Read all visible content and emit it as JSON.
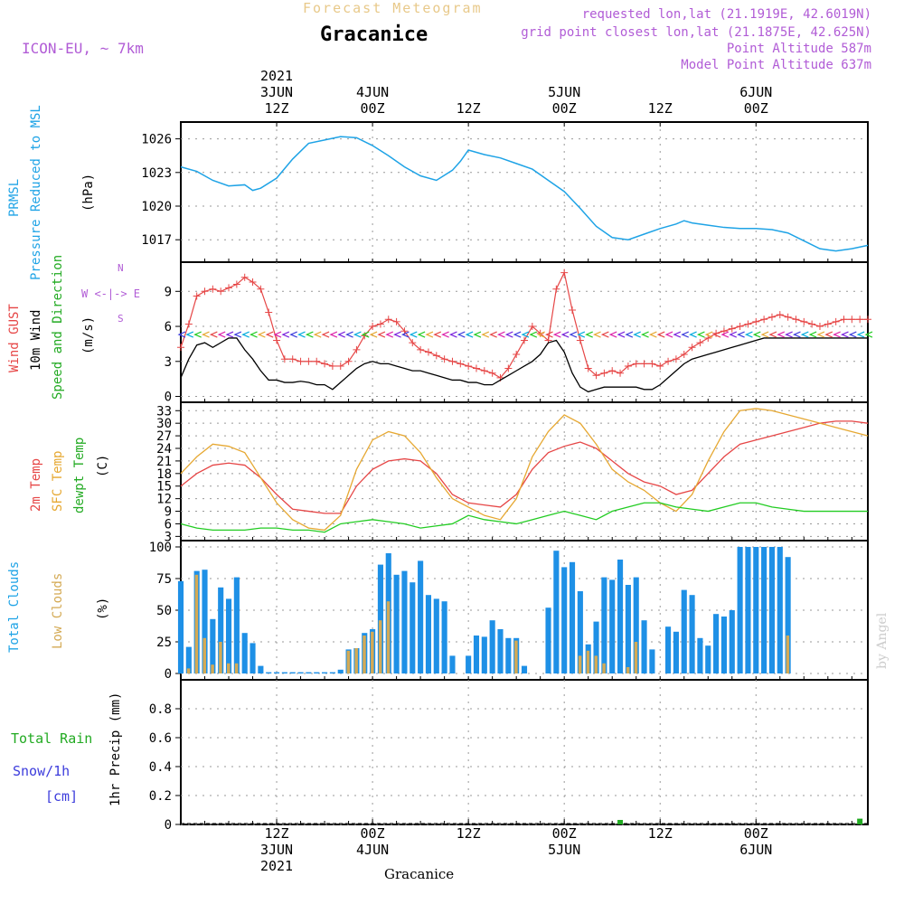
{
  "header": {
    "title_top": "Forecast Meteogram",
    "location": "Gracanice",
    "model": "ICON-EU, ~ 7km",
    "requested": "requested lon,lat (21.1919E, 42.6019N)",
    "gridpoint": "grid point closest lon,lat (21.1875E, 42.625N)",
    "point_altitude": "Point Altitude 587m",
    "model_altitude": "Model Point Altitude 637m"
  },
  "time_axis": {
    "top_labels": [
      {
        "l1": "2021",
        "l2": "3JUN",
        "l3": "12Z",
        "t": 12
      },
      {
        "l1": "",
        "l2": "4JUN",
        "l3": "00Z",
        "t": 24
      },
      {
        "l1": "",
        "l2": "",
        "l3": "12Z",
        "t": 36
      },
      {
        "l1": "",
        "l2": "5JUN",
        "l3": "00Z",
        "t": 48
      },
      {
        "l1": "",
        "l2": "",
        "l3": "12Z",
        "t": 60
      },
      {
        "l1": "",
        "l2": "6JUN",
        "l3": "00Z",
        "t": 72
      }
    ],
    "bottom_labels": [
      {
        "l1": "12Z",
        "l2": "3JUN",
        "l3": "2021",
        "t": 12
      },
      {
        "l1": "00Z",
        "l2": "4JUN",
        "l3": "",
        "t": 24
      },
      {
        "l1": "12Z",
        "l2": "",
        "l3": "",
        "t": 36
      },
      {
        "l1": "00Z",
        "l2": "5JUN",
        "l3": "",
        "t": 48
      },
      {
        "l1": "12Z",
        "l2": "",
        "l3": "",
        "t": 60
      },
      {
        "l1": "00Z",
        "l2": "6JUN",
        "l3": "",
        "t": 72
      }
    ],
    "bottom_name": "Gracanice"
  },
  "panel_labels": {
    "pressure": {
      "a": "PRMSL",
      "b": "Pressure Reduced to MSL",
      "unit": "(hPa)"
    },
    "wind": {
      "a": "Wind GUST",
      "b": "10m Wind",
      "c": "Speed and Direction",
      "unit": "(m/s)",
      "compass_n": "N",
      "compass_s": "S",
      "compass_we": "W <-|-> E"
    },
    "temp": {
      "a": "2m Temp",
      "b": "SFC Temp",
      "c": "dewpt Temp",
      "unit": "(C)"
    },
    "clouds": {
      "a": "Total Clouds",
      "b": "Low Clouds",
      "unit": "(%)"
    },
    "precip": {
      "a": "Total  Rain",
      "b": "Snow/1h",
      "c": "[cm]",
      "unit": "1hr Precip (mm)"
    }
  },
  "watermark": "by Angel",
  "colors": {
    "pressure": "#1ea3e6",
    "gust": "#e64646",
    "wind": "#000000",
    "t2m": "#e64646",
    "sfc": "#e6a832",
    "dewpt": "#22cc22",
    "total_cloud": "#1e90e6",
    "low_cloud": "#d4aa55",
    "rain": "#22aa22",
    "snow": "#3c3cdc",
    "meta": "#b15cd6"
  },
  "chart_data": [
    {
      "type": "line",
      "name": "pressure",
      "ylim": [
        1015,
        1027.5
      ],
      "yticks": [
        1017,
        1020,
        1023,
        1026
      ],
      "x": [
        0,
        2,
        4,
        6,
        8,
        9,
        10,
        12,
        14,
        16,
        18,
        20,
        22,
        24,
        26,
        28,
        30,
        32,
        34,
        35,
        36,
        38,
        40,
        42,
        44,
        46,
        48,
        50,
        52,
        54,
        56,
        58,
        60,
        62,
        63,
        64,
        66,
        68,
        70,
        72,
        74,
        76,
        78,
        80,
        82,
        84,
        86
      ],
      "series": [
        {
          "name": "PRMSL",
          "values": [
            1023.5,
            1023.1,
            1022.3,
            1021.8,
            1021.9,
            1021.4,
            1021.6,
            1022.5,
            1024.2,
            1025.6,
            1025.9,
            1026.2,
            1026.1,
            1025.4,
            1024.5,
            1023.5,
            1022.7,
            1022.3,
            1023.2,
            1024.0,
            1025.0,
            1024.6,
            1024.3,
            1023.8,
            1023.3,
            1022.3,
            1021.3,
            1019.8,
            1018.2,
            1017.2,
            1017.0,
            1017.5,
            1018.0,
            1018.4,
            1018.7,
            1018.5,
            1018.3,
            1018.1,
            1018.0,
            1018.0,
            1017.9,
            1017.6,
            1016.9,
            1016.2,
            1016.0,
            1016.2,
            1016.5
          ]
        }
      ]
    },
    {
      "type": "line",
      "name": "wind",
      "ylim": [
        -0.5,
        11.5
      ],
      "yticks": [
        0,
        3,
        6,
        9
      ],
      "x": [
        0,
        1,
        2,
        3,
        4,
        5,
        6,
        7,
        8,
        9,
        10,
        11,
        12,
        13,
        14,
        15,
        16,
        17,
        18,
        19,
        20,
        21,
        22,
        23,
        24,
        25,
        26,
        27,
        28,
        29,
        30,
        31,
        32,
        33,
        34,
        35,
        36,
        37,
        38,
        39,
        40,
        41,
        42,
        43,
        44,
        45,
        46,
        47,
        48,
        49,
        50,
        51,
        52,
        53,
        54,
        55,
        56,
        57,
        58,
        59,
        60,
        61,
        62,
        63,
        64,
        65,
        66,
        67,
        68,
        69,
        70,
        71,
        72,
        73,
        74,
        75,
        76,
        77,
        78,
        79,
        80,
        81,
        82,
        83,
        84,
        85,
        86
      ],
      "series": [
        {
          "name": "Wind GUST",
          "values": [
            4.2,
            6.2,
            8.6,
            9.0,
            9.2,
            9.0,
            9.3,
            9.6,
            10.2,
            9.8,
            9.2,
            7.2,
            4.8,
            3.2,
            3.2,
            3.0,
            3.0,
            3.0,
            2.8,
            2.6,
            2.6,
            3.0,
            4.0,
            5.2,
            6.0,
            6.2,
            6.6,
            6.4,
            5.6,
            4.6,
            4.0,
            3.8,
            3.5,
            3.2,
            3.0,
            2.8,
            2.6,
            2.4,
            2.2,
            2.0,
            1.6,
            2.4,
            3.6,
            4.8,
            6.0,
            5.4,
            4.8,
            9.2,
            10.6,
            7.4,
            4.8,
            2.4,
            1.8,
            2.0,
            2.2,
            2.0,
            2.6,
            2.8,
            2.8,
            2.8,
            2.6,
            3.0,
            3.2,
            3.6,
            4.2,
            4.6,
            5.0,
            5.4,
            5.6,
            5.8,
            6.0,
            6.2,
            6.4,
            6.6,
            6.8,
            7.0,
            6.8,
            6.6,
            6.4,
            6.2,
            6.0,
            6.2,
            6.4,
            6.6,
            6.6,
            6.6,
            6.6
          ]
        },
        {
          "name": "10m Wind",
          "values": [
            1.6,
            3.2,
            4.4,
            4.6,
            4.2,
            4.6,
            5.0,
            5.0,
            4.0,
            3.2,
            2.2,
            1.4,
            1.4,
            1.2,
            1.2,
            1.3,
            1.2,
            1.0,
            1.0,
            0.6,
            1.2,
            1.8,
            2.4,
            2.8,
            3.0,
            2.8,
            2.8,
            2.6,
            2.4,
            2.2,
            2.2,
            2.0,
            1.8,
            1.6,
            1.4,
            1.4,
            1.2,
            1.2,
            1.0,
            1.0,
            1.4,
            1.8,
            2.2,
            2.6,
            3.0,
            3.6,
            4.6,
            4.8,
            3.8,
            2.0,
            0.8,
            0.4,
            0.6,
            0.8,
            0.8,
            0.8,
            0.8,
            0.8,
            0.6,
            0.6,
            1.0,
            1.6,
            2.2,
            2.8,
            3.2,
            3.4,
            3.6,
            3.8,
            4.0,
            4.2,
            4.4,
            4.6,
            4.8,
            5.0,
            5.0,
            5.0,
            5.0,
            5.0,
            5.0,
            5.0,
            5.0,
            5.0,
            5.0,
            5.0,
            5.0,
            5.0,
            5.0
          ]
        }
      ]
    },
    {
      "type": "line",
      "name": "temperature",
      "ylim": [
        2,
        35
      ],
      "yticks": [
        3,
        6,
        9,
        12,
        15,
        18,
        21,
        24,
        27,
        30,
        33
      ],
      "x": [
        0,
        2,
        4,
        6,
        8,
        10,
        12,
        14,
        16,
        18,
        20,
        22,
        24,
        26,
        28,
        30,
        32,
        34,
        36,
        38,
        40,
        42,
        44,
        46,
        48,
        50,
        52,
        54,
        56,
        58,
        60,
        62,
        64,
        66,
        68,
        70,
        72,
        74,
        76,
        78,
        80,
        82,
        84,
        86
      ],
      "series": [
        {
          "name": "2m Temp",
          "values": [
            15,
            18,
            20,
            20.5,
            20,
            17,
            13,
            9.5,
            9,
            8.5,
            8.5,
            15,
            19,
            21,
            21.5,
            21,
            18,
            13,
            11,
            10.5,
            10,
            13,
            19,
            23,
            24.5,
            25.5,
            24,
            21,
            18,
            16,
            15,
            13,
            14,
            18,
            22,
            25,
            26,
            27,
            28,
            29,
            30,
            30.5,
            30.5,
            30
          ]
        },
        {
          "name": "SFC Temp",
          "values": [
            18,
            22,
            25,
            24.5,
            23,
            17,
            11,
            7,
            5,
            4.5,
            8,
            19,
            26,
            28,
            27,
            23,
            17,
            12,
            10,
            8,
            7,
            12,
            22,
            28,
            32,
            30,
            25,
            19,
            16,
            14,
            11,
            9,
            13,
            21,
            28,
            33,
            33.5,
            33,
            32,
            31,
            30,
            29,
            28,
            27
          ]
        },
        {
          "name": "dewpt Temp",
          "values": [
            6,
            5,
            4.5,
            4.5,
            4.5,
            5,
            5,
            4.5,
            4.5,
            4,
            6,
            6.5,
            7,
            6.5,
            6,
            5,
            5.5,
            6,
            8,
            7,
            6.5,
            6,
            7,
            8,
            9,
            8,
            7,
            9,
            10,
            11,
            11,
            10,
            9.5,
            9,
            10,
            11,
            11,
            10,
            9.5,
            9,
            9,
            9,
            9,
            9
          ]
        }
      ]
    },
    {
      "type": "bar",
      "name": "clouds",
      "ylim": [
        -5,
        105
      ],
      "yticks": [
        0,
        25,
        50,
        75,
        100
      ],
      "x": [
        0,
        1,
        2,
        3,
        4,
        5,
        6,
        7,
        8,
        9,
        10,
        11,
        12,
        13,
        14,
        15,
        16,
        17,
        18,
        19,
        20,
        21,
        22,
        23,
        24,
        25,
        26,
        27,
        28,
        29,
        30,
        31,
        32,
        33,
        34,
        35,
        36,
        37,
        38,
        39,
        40,
        41,
        42,
        43,
        44,
        45,
        46,
        47,
        48,
        49,
        50,
        51,
        52,
        53,
        54,
        55,
        56,
        57,
        58,
        59,
        60,
        61,
        62,
        63,
        64,
        65,
        66,
        67,
        68,
        69,
        70,
        71,
        72,
        73,
        74,
        75,
        76,
        77,
        78,
        79,
        80,
        81,
        82,
        83,
        84,
        85,
        86
      ],
      "series": [
        {
          "name": "Total Clouds",
          "values": [
            73,
            21,
            81,
            82,
            43,
            68,
            59,
            76,
            32,
            24,
            6,
            1,
            1,
            1,
            1,
            1,
            1,
            1,
            1,
            1,
            3,
            19,
            20,
            32,
            35,
            86,
            95,
            78,
            81,
            72,
            89,
            62,
            59,
            57,
            14,
            0,
            14,
            30,
            29,
            42,
            35,
            28,
            28,
            6,
            0,
            0,
            52,
            97,
            84,
            88,
            65,
            23,
            41,
            76,
            74,
            90,
            70,
            76,
            42,
            19,
            0,
            37,
            33,
            66,
            62,
            28,
            22,
            47,
            45,
            50,
            100,
            100,
            100,
            100,
            100,
            100,
            92,
            0,
            0,
            0,
            0,
            0,
            0,
            0,
            0,
            0,
            0
          ]
        },
        {
          "name": "Low Clouds",
          "values": [
            0,
            4,
            78,
            28,
            7,
            25,
            8,
            8,
            0,
            0,
            0,
            0,
            0,
            0,
            0,
            0,
            0,
            0,
            0,
            0,
            0,
            18,
            20,
            30,
            33,
            42,
            57,
            0,
            0,
            0,
            0,
            0,
            0,
            0,
            0,
            0,
            0,
            0,
            0,
            0,
            0,
            0,
            26,
            0,
            0,
            0,
            0,
            0,
            0,
            0,
            14,
            18,
            14,
            8,
            0,
            0,
            5,
            25,
            0,
            0,
            0,
            0,
            0,
            0,
            0,
            0,
            0,
            0,
            0,
            0,
            0,
            0,
            0,
            0,
            0,
            0,
            30,
            0,
            0,
            0,
            0,
            0,
            0,
            0,
            0,
            0,
            0
          ]
        }
      ]
    },
    {
      "type": "bar",
      "name": "precip",
      "ylim": [
        0,
        1.0
      ],
      "yticks": [
        0,
        0.2,
        0.4,
        0.6,
        0.8
      ],
      "x": [
        55,
        85
      ],
      "series": [
        {
          "name": "Total Rain",
          "values": [
            0.02,
            0.04
          ]
        }
      ]
    }
  ]
}
